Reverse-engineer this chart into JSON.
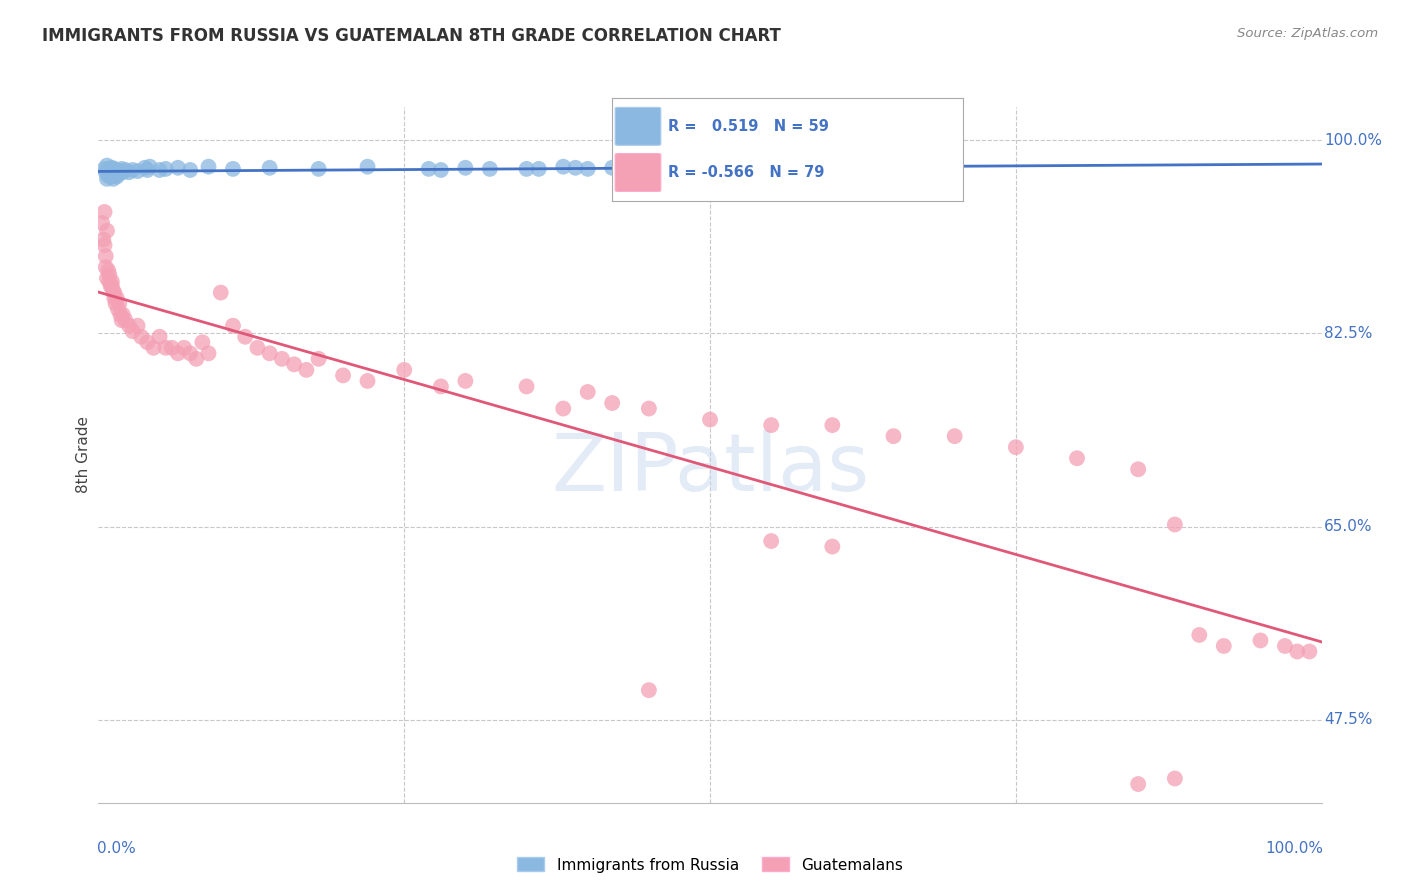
{
  "title": "IMMIGRANTS FROM RUSSIA VS GUATEMALAN 8TH GRADE CORRELATION CHART",
  "source": "Source: ZipAtlas.com",
  "ylabel": "8th Grade",
  "ytick_labels": [
    "100.0%",
    "82.5%",
    "65.0%",
    "47.5%"
  ],
  "ytick_values": [
    1.0,
    0.825,
    0.65,
    0.475
  ],
  "legend_blue_r": "0.519",
  "legend_blue_n": "59",
  "legend_pink_r": "-0.566",
  "legend_pink_n": "79",
  "legend_blue_label": "Immigrants from Russia",
  "legend_pink_label": "Guatemalans",
  "blue_color": "#8ab8e0",
  "pink_color": "#f4a0b5",
  "blue_line_color": "#4472c4",
  "pink_line_color": "#e05878",
  "background_color": "#ffffff",
  "grid_color": "#c8c8c8",
  "axis_label_color": "#4472c4",
  "title_color": "#333333",
  "blue_scatter_x": [
    0.005,
    0.006,
    0.007,
    0.007,
    0.008,
    0.008,
    0.009,
    0.009,
    0.01,
    0.01,
    0.011,
    0.011,
    0.012,
    0.012,
    0.013,
    0.013,
    0.014,
    0.014,
    0.015,
    0.015,
    0.016,
    0.017,
    0.018,
    0.019,
    0.02,
    0.022,
    0.025,
    0.028,
    0.032,
    0.038,
    0.04,
    0.042,
    0.05,
    0.055,
    0.065,
    0.075,
    0.09,
    0.11,
    0.14,
    0.18,
    0.22,
    0.27,
    0.3,
    0.35,
    0.38,
    0.4,
    0.42,
    0.45,
    0.5,
    0.55,
    0.6,
    0.65,
    0.7,
    0.28,
    0.32,
    0.36,
    0.39,
    0.44,
    0.48
  ],
  "blue_scatter_y": [
    0.974,
    0.971,
    0.977,
    0.965,
    0.972,
    0.968,
    0.974,
    0.968,
    0.972,
    0.967,
    0.975,
    0.968,
    0.972,
    0.965,
    0.974,
    0.969,
    0.972,
    0.968,
    0.971,
    0.967,
    0.972,
    0.97,
    0.972,
    0.974,
    0.971,
    0.973,
    0.971,
    0.973,
    0.972,
    0.975,
    0.973,
    0.976,
    0.973,
    0.974,
    0.975,
    0.973,
    0.976,
    0.974,
    0.975,
    0.974,
    0.976,
    0.974,
    0.975,
    0.974,
    0.976,
    0.974,
    0.975,
    0.975,
    0.974,
    0.975,
    0.974,
    0.975,
    0.975,
    0.973,
    0.974,
    0.974,
    0.975,
    0.974,
    0.975
  ],
  "pink_scatter_x": [
    0.003,
    0.004,
    0.005,
    0.005,
    0.006,
    0.006,
    0.007,
    0.007,
    0.008,
    0.009,
    0.009,
    0.01,
    0.011,
    0.011,
    0.012,
    0.013,
    0.013,
    0.014,
    0.015,
    0.016,
    0.017,
    0.018,
    0.019,
    0.02,
    0.022,
    0.025,
    0.028,
    0.032,
    0.035,
    0.04,
    0.045,
    0.05,
    0.055,
    0.06,
    0.065,
    0.07,
    0.075,
    0.08,
    0.085,
    0.09,
    0.1,
    0.11,
    0.12,
    0.13,
    0.14,
    0.15,
    0.16,
    0.17,
    0.18,
    0.2,
    0.22,
    0.25,
    0.28,
    0.3,
    0.35,
    0.38,
    0.4,
    0.42,
    0.45,
    0.5,
    0.55,
    0.6,
    0.65,
    0.7,
    0.75,
    0.8,
    0.85,
    0.88,
    0.9,
    0.92,
    0.95,
    0.97,
    0.98,
    0.99,
    0.55,
    0.6,
    0.85,
    0.88,
    0.45
  ],
  "pink_scatter_y": [
    0.925,
    0.91,
    0.905,
    0.935,
    0.895,
    0.885,
    0.918,
    0.875,
    0.882,
    0.872,
    0.878,
    0.868,
    0.872,
    0.868,
    0.863,
    0.857,
    0.862,
    0.852,
    0.857,
    0.847,
    0.852,
    0.842,
    0.837,
    0.842,
    0.837,
    0.832,
    0.827,
    0.832,
    0.822,
    0.817,
    0.812,
    0.822,
    0.812,
    0.812,
    0.807,
    0.812,
    0.807,
    0.802,
    0.817,
    0.807,
    0.862,
    0.832,
    0.822,
    0.812,
    0.807,
    0.802,
    0.797,
    0.792,
    0.802,
    0.787,
    0.782,
    0.792,
    0.777,
    0.782,
    0.777,
    0.757,
    0.772,
    0.762,
    0.757,
    0.747,
    0.742,
    0.742,
    0.732,
    0.732,
    0.722,
    0.712,
    0.702,
    0.652,
    0.552,
    0.542,
    0.547,
    0.542,
    0.537,
    0.537,
    0.637,
    0.632,
    0.417,
    0.422,
    0.502
  ]
}
